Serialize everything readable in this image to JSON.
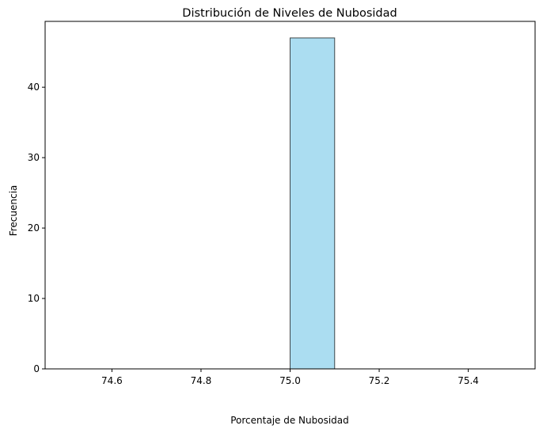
{
  "chart_data": {
    "type": "bar",
    "title": "Distribución de Niveles de Nubosidad",
    "xlabel": "Porcentaje de Nubosidad",
    "ylabel": "Frecuencia",
    "xlim": [
      74.45,
      75.55
    ],
    "ylim": [
      0,
      49.35
    ],
    "xticks": [
      74.6,
      74.8,
      75.0,
      75.2,
      75.4
    ],
    "xtick_labels": [
      "74.6",
      "74.8",
      "75.0",
      "75.2",
      "75.4"
    ],
    "yticks": [
      0,
      10,
      20,
      30,
      40
    ],
    "ytick_labels": [
      "0",
      "10",
      "20",
      "30",
      "40"
    ],
    "bins": [
      {
        "x0": 74.5,
        "x1": 74.6,
        "count": 0
      },
      {
        "x0": 74.6,
        "x1": 74.7,
        "count": 0
      },
      {
        "x0": 74.7,
        "x1": 74.8,
        "count": 0
      },
      {
        "x0": 74.8,
        "x1": 74.9,
        "count": 0
      },
      {
        "x0": 74.9,
        "x1": 75.0,
        "count": 0
      },
      {
        "x0": 75.0,
        "x1": 75.1,
        "count": 47
      },
      {
        "x0": 75.1,
        "x1": 75.2,
        "count": 0
      },
      {
        "x0": 75.2,
        "x1": 75.3,
        "count": 0
      },
      {
        "x0": 75.3,
        "x1": 75.4,
        "count": 0
      },
      {
        "x0": 75.4,
        "x1": 75.5,
        "count": 0
      }
    ],
    "bar_color": "#87ceeb",
    "bar_edge_color": "#000000",
    "grid": false
  }
}
